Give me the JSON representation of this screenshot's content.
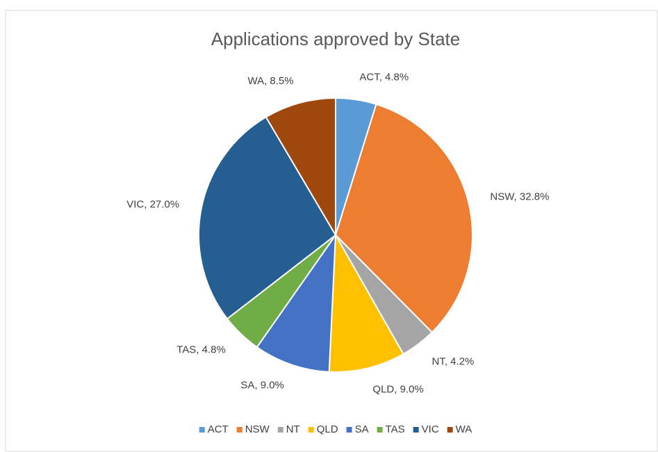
{
  "chart_data": {
    "type": "pie",
    "title": "Applications approved by State",
    "categories": [
      "ACT",
      "NSW",
      "NT",
      "QLD",
      "SA",
      "TAS",
      "VIC",
      "WA"
    ],
    "values": [
      4.8,
      32.8,
      4.2,
      9.0,
      9.0,
      4.8,
      27.0,
      8.5
    ],
    "value_labels": [
      "ACT, 4.8%",
      "NSW, 32.8%",
      "NT, 4.2%",
      "QLD, 9.0%",
      "SA, 9.0%",
      "TAS, 4.8%",
      "VIC, 27.0%",
      "WA, 8.5%"
    ],
    "colors": [
      "#5b9bd5",
      "#ed7d31",
      "#a5a5a5",
      "#ffc000",
      "#4472c4",
      "#70ad47",
      "#255e91",
      "#9e480e"
    ],
    "legend": "bottom"
  }
}
